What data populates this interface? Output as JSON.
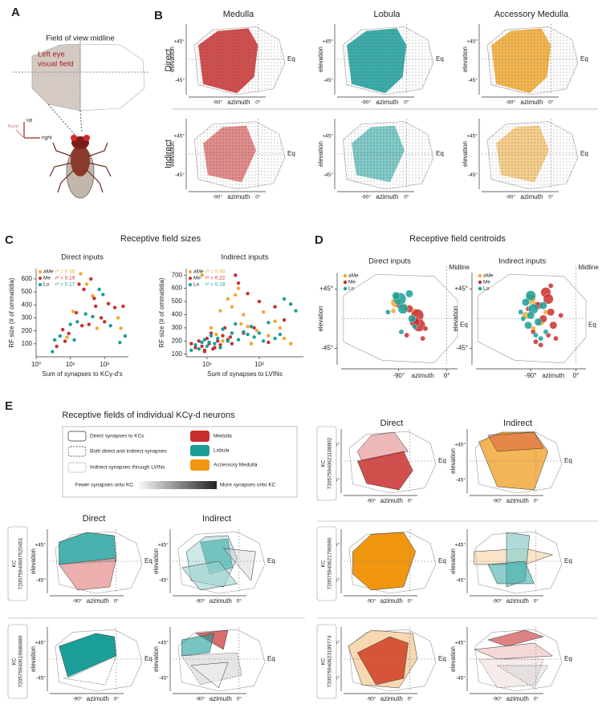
{
  "panel_labels": [
    "A",
    "B",
    "C",
    "D",
    "E"
  ],
  "panel_a": {
    "title": "Field of view midline",
    "visual_field": [
      "Left eye",
      "visual field"
    ],
    "axes": [
      "up",
      "right",
      "front"
    ]
  },
  "panel_b": {
    "columns": [
      "Medulla",
      "Lobula",
      "Accessory Medulla"
    ],
    "rows": [
      "Direct",
      "Indirect"
    ]
  },
  "map_axes": {
    "up": "+45°",
    "down": "-45°",
    "left": "-90°",
    "zero": "0°",
    "y_label": "elevation",
    "x_label": "azimuth",
    "eq": "Eq"
  },
  "panel_c_title": "Receptive field sizes",
  "panel_d_title": "Receptive field centroids",
  "chart_data": [
    {
      "type": "scatter",
      "title": "Direct inputs",
      "x_label": "Sum of synapses to KCγ-d's",
      "y_label": "RF size (# of ommatidia)",
      "log_x": true,
      "xlim": [
        1,
        500
      ],
      "ylim": [
        0,
        680
      ],
      "xticks": [
        {
          "value": 1,
          "label": "10⁰"
        },
        {
          "value": 10,
          "label": "10¹"
        },
        {
          "value": 100,
          "label": "10²"
        }
      ],
      "yticks": [
        100,
        200,
        300,
        400,
        500,
        600
      ],
      "series": [
        {
          "name": "aMe",
          "stats": "r² = 0.35",
          "color": "#f0a830",
          "x": [
            20,
            30,
            45,
            12,
            60,
            250,
            300,
            8
          ],
          "values": [
            640,
            560,
            470,
            350,
            220,
            300,
            220,
            150
          ]
        },
        {
          "name": "Me",
          "stats": "r² = 0.19",
          "color": "#c8302e",
          "x": [
            4,
            6,
            9,
            15,
            18,
            25,
            40,
            50,
            55,
            35,
            80,
            100,
            130,
            200,
            350,
            7,
            22
          ],
          "values": [
            80,
            210,
            180,
            340,
            560,
            520,
            600,
            450,
            390,
            250,
            300,
            270,
            410,
            380,
            390,
            120,
            240
          ]
        },
        {
          "name": "Lo",
          "stats": "r² = 0.17",
          "color": "#1a9e9a",
          "x": [
            3,
            3.5,
            5,
            10,
            13,
            16,
            28,
            45,
            70,
            90,
            150,
            280,
            400
          ],
          "values": [
            40,
            130,
            160,
            250,
            130,
            270,
            330,
            310,
            520,
            480,
            240,
            110,
            160
          ]
        }
      ]
    },
    {
      "type": "scatter",
      "title": "Indirect inputs",
      "x_label": "Sum of synapses to LVINs",
      "y_label": "RF size (# of ommatidia)",
      "log_x": true,
      "xlim": [
        4,
        700
      ],
      "ylim": [
        80,
        750
      ],
      "xticks": [
        {
          "value": 10,
          "label": "10¹"
        },
        {
          "value": 100,
          "label": "10²"
        }
      ],
      "yticks": [
        100,
        200,
        300,
        400,
        500,
        600,
        700
      ],
      "series": [
        {
          "name": "aMe",
          "stats": "r² = 0.00",
          "color": "#f0a830",
          "x": [
            8,
            12,
            15,
            20,
            25,
            30,
            40,
            50,
            60,
            70,
            90,
            120,
            150,
            200,
            250,
            300,
            400,
            18,
            35,
            45
          ],
          "values": [
            700,
            300,
            250,
            200,
            520,
            460,
            600,
            400,
            310,
            180,
            280,
            420,
            240,
            350,
            300,
            220,
            180,
            430,
            550,
            330
          ]
        },
        {
          "name": "Me",
          "stats": "r² = 0.22",
          "color": "#c8302e",
          "x": [
            5,
            6,
            7,
            8,
            9,
            10,
            11,
            12,
            14,
            16,
            18,
            20,
            22,
            25,
            30,
            35,
            40,
            50,
            60,
            80,
            100,
            150,
            200,
            300,
            9,
            13,
            28
          ],
          "values": [
            180,
            150,
            200,
            160,
            130,
            220,
            180,
            260,
            150,
            200,
            170,
            240,
            300,
            210,
            180,
            700,
            640,
            260,
            560,
            300,
            500,
            190,
            460,
            360,
            120,
            140,
            230
          ]
        },
        {
          "name": "Lo",
          "stats": "r² = 0.18",
          "color": "#1a9e9a",
          "x": [
            5,
            6,
            7,
            8,
            9,
            10,
            12,
            14,
            16,
            18,
            20,
            25,
            30,
            35,
            40,
            50,
            60,
            70,
            80,
            100,
            120,
            150,
            200,
            250,
            300,
            400,
            500,
            11
          ],
          "values": [
            130,
            170,
            140,
            190,
            210,
            160,
            240,
            180,
            220,
            150,
            290,
            200,
            260,
            330,
            210,
            270,
            250,
            310,
            230,
            260,
            200,
            340,
            220,
            250,
            520,
            480,
            430,
            190
          ]
        }
      ]
    },
    {
      "type": "bubble",
      "title": "Direct inputs",
      "x_label": "azimuth",
      "y_label": "elevation",
      "midline": "Midline",
      "eq": "Eq",
      "xlim": [
        -175,
        20
      ],
      "ylim": [
        -70,
        70
      ],
      "xticks": [
        {
          "value": -90,
          "label": "-90°"
        },
        {
          "value": 0,
          "label": "0°"
        }
      ],
      "yticks": [
        {
          "value": 45,
          "label": "+45°"
        },
        {
          "value": -45,
          "label": "-45°"
        }
      ],
      "series": [
        {
          "name": "aMe",
          "color": "#f0a830",
          "x": [
            -95,
            -80,
            -60,
            -100
          ],
          "values": [
            25,
            18,
            10,
            12
          ],
          "sizes": [
            3,
            2,
            2,
            1
          ]
        },
        {
          "name": "Me",
          "color": "#c8302e",
          "x": [
            -55,
            -52,
            -60,
            -70,
            -90,
            -40,
            -75,
            -45
          ],
          "values": [
            5,
            -10,
            -5,
            15,
            20,
            -15,
            -25,
            -30
          ],
          "sizes": [
            4,
            4,
            3,
            2,
            1,
            1,
            1,
            1
          ]
        },
        {
          "name": "Lo",
          "color": "#1a9e9a",
          "x": [
            -88,
            -82,
            -95,
            -70,
            -65,
            -85,
            -110,
            -60
          ],
          "values": [
            30,
            15,
            35,
            38,
            0,
            -20,
            10,
            -12
          ],
          "sizes": [
            4,
            3,
            2,
            2,
            2,
            1,
            1,
            1
          ]
        }
      ]
    },
    {
      "type": "bubble",
      "title": "Indirect inputs",
      "x_label": "azimuth",
      "y_label": "elevation",
      "midline": "Midline",
      "eq": "Eq",
      "xlim": [
        -175,
        20
      ],
      "ylim": [
        -70,
        70
      ],
      "xticks": [
        {
          "value": -90,
          "label": "-90°"
        },
        {
          "value": 0,
          "label": "0°"
        }
      ],
      "yticks": [
        {
          "value": 45,
          "label": "+45°"
        },
        {
          "value": -45,
          "label": "-45°"
        }
      ],
      "series": [
        {
          "name": "aMe",
          "color": "#f0a830",
          "x": [
            -90,
            -80,
            -70,
            -100,
            -60,
            -85
          ],
          "values": [
            30,
            20,
            -5,
            5,
            10,
            -15
          ],
          "sizes": [
            3,
            2,
            2,
            2,
            1,
            1
          ]
        },
        {
          "name": "Me",
          "color": "#c8302e",
          "x": [
            -60,
            -55,
            -75,
            -50,
            -65,
            -45,
            -85,
            -40,
            -70,
            -95,
            -30,
            -55,
            -80,
            -50
          ],
          "values": [
            40,
            30,
            20,
            10,
            0,
            -10,
            -20,
            -30,
            -40,
            15,
            5,
            -25,
            -35,
            50
          ],
          "sizes": [
            3,
            3,
            2,
            2,
            2,
            2,
            1,
            1,
            1,
            1,
            1,
            1,
            1,
            1
          ]
        },
        {
          "name": "Lo",
          "color": "#1a9e9a",
          "x": [
            -90,
            -100,
            -85,
            -75,
            -95,
            -65,
            -105,
            -80,
            -70,
            -90,
            -60,
            -110
          ],
          "values": [
            35,
            25,
            15,
            -5,
            -10,
            20,
            0,
            -25,
            -30,
            5,
            -20,
            10
          ],
          "sizes": [
            3,
            2,
            3,
            2,
            2,
            2,
            1,
            1,
            1,
            2,
            1,
            1
          ]
        }
      ]
    }
  ],
  "panel_e": {
    "title": "Receptive fields of individual KCγ-d neurons",
    "legend": [
      "Direct synapses to KCs",
      "Both direct and indirect synapses",
      "Indirect synapses through LVINs"
    ],
    "gradient": [
      "Fewer synapses onto KC",
      "More synapses onto KC"
    ],
    "columns": [
      "Direct",
      "Indirect"
    ],
    "kc_label": "KC",
    "kc_ids": [
      "720575940607520451",
      "720575940619686680",
      "720575940621188802",
      "720575940621796590",
      "720575940623189774"
    ]
  }
}
